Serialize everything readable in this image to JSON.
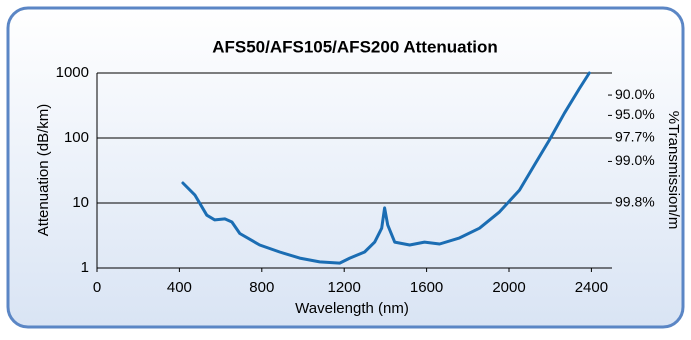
{
  "chart_data": {
    "type": "line",
    "title": "AFS50/AFS105/AFS200 Attenuation",
    "x_label": "Wavelength (nm)",
    "y_label": "Attenuation (dB/km)",
    "y2_label": "%Transmission/m",
    "x": [
      417,
      475,
      533,
      572,
      621,
      655,
      693,
      790,
      887,
      984,
      1081,
      1178,
      1227,
      1299,
      1348,
      1382,
      1396,
      1411,
      1445,
      1518,
      1590,
      1663,
      1760,
      1857,
      1954,
      2051,
      2124,
      2196,
      2269,
      2342,
      2390
    ],
    "series": [
      {
        "color": "#1b6db3",
        "values": [
          20.3,
          13.3,
          6.5,
          5.5,
          5.7,
          5.1,
          3.4,
          2.26,
          1.76,
          1.42,
          1.24,
          1.19,
          1.42,
          1.76,
          2.5,
          4.1,
          8.4,
          4.6,
          2.5,
          2.26,
          2.5,
          2.34,
          2.9,
          4.1,
          7.3,
          15.8,
          38.5,
          93,
          241,
          580,
          1000
        ]
      }
    ],
    "xlim": [
      0,
      2500
    ],
    "xticks": [
      0,
      400,
      800,
      1200,
      1600,
      2000,
      2400
    ],
    "ylim": [
      1,
      1000
    ],
    "yticks": [
      1,
      10,
      100,
      1000
    ],
    "y_scale": "log",
    "y2lim": [
      1,
      1000
    ],
    "y2ticks": [
      {
        "value": 457.6,
        "label": "90.0%"
      },
      {
        "value": 222.8,
        "label": "95.0%"
      },
      {
        "value": 100,
        "label": "97.7%"
      },
      {
        "value": 43.6,
        "label": "99.0%"
      },
      {
        "value": 10,
        "label": "99.8%"
      }
    ],
    "grid": true
  }
}
